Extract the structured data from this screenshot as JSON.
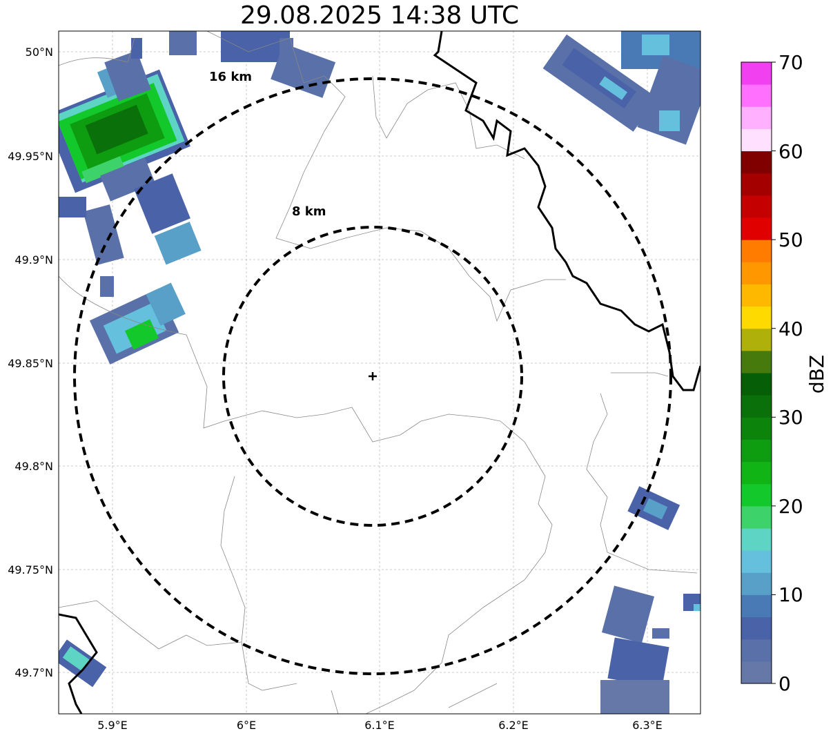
{
  "title": "29.08.2025 14:38 UTC",
  "map": {
    "lon_ticks": [
      "5.9°E",
      "6°E",
      "6.1°E",
      "6.2°E",
      "6.3°E"
    ],
    "lat_ticks": [
      "50°N",
      "49.95°N",
      "49.9°N",
      "49.85°N",
      "49.8°N",
      "49.75°N",
      "49.7°N"
    ],
    "range_rings": [
      {
        "label": "8 km",
        "radius_km": 8
      },
      {
        "label": "16 km",
        "radius_km": 16
      }
    ],
    "radar_site": {
      "lon": 6.095,
      "lat": 49.843
    },
    "extent": {
      "lon": [
        5.86,
        6.34
      ],
      "lat": [
        49.68,
        50.01
      ]
    }
  },
  "colorbar": {
    "label": "dBZ",
    "ticks": [
      "0",
      "10",
      "20",
      "30",
      "40",
      "50",
      "60",
      "70"
    ],
    "range": [
      0,
      70
    ],
    "step": 2.5,
    "colors": [
      "#6678a8",
      "#5a70a8",
      "#4a62a8",
      "#4a7ab6",
      "#58a0c8",
      "#64c0dc",
      "#5ed4c4",
      "#3ed26a",
      "#12c82a",
      "#10b414",
      "#0e9c10",
      "#0c840c",
      "#0a700a",
      "#065e06",
      "#467a0c",
      "#b0b00a",
      "#ffda00",
      "#ffb800",
      "#ff9800",
      "#ff7c00",
      "#e00000",
      "#c40000",
      "#a40000",
      "#800000",
      "#ffe0ff",
      "#ffb0ff",
      "#ff70ff",
      "#f040f0"
    ]
  }
}
